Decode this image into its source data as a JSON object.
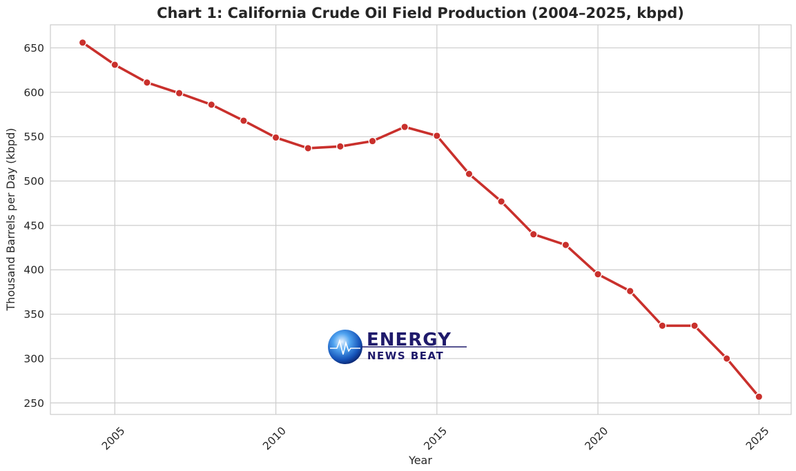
{
  "chart_data": {
    "type": "line",
    "title": "Chart 1: California Crude Oil Field Production (2004–2025, kbpd)",
    "xlabel": "Year",
    "ylabel": "Thousand Barrels per Day (kbpd)",
    "x": [
      2004,
      2005,
      2006,
      2007,
      2008,
      2009,
      2010,
      2011,
      2012,
      2013,
      2014,
      2015,
      2016,
      2017,
      2018,
      2019,
      2020,
      2021,
      2022,
      2023,
      2024,
      2025
    ],
    "series": [
      {
        "values": [
          656,
          631,
          611,
          599,
          586,
          568,
          549,
          537,
          539,
          545,
          561,
          551,
          508,
          477,
          440,
          428,
          395,
          376,
          337,
          337,
          300,
          257
        ],
        "color": "#c9302c"
      }
    ],
    "xlim": [
      2003,
      2026
    ],
    "ylim": [
      237,
      676
    ],
    "x_ticks": [
      2005,
      2010,
      2015,
      2020,
      2025
    ],
    "y_ticks": [
      250,
      300,
      350,
      400,
      450,
      500,
      550,
      600,
      650
    ],
    "grid": true,
    "legend": "none"
  },
  "logo": {
    "line1": "ENERGY",
    "line2": "NEWS BEAT"
  }
}
